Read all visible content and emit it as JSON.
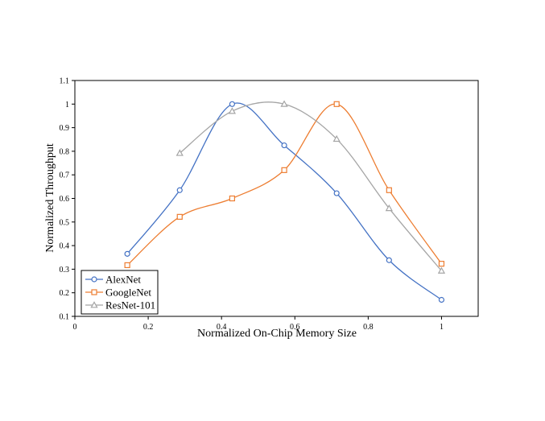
{
  "chart_data": {
    "type": "line",
    "title": "",
    "xlabel": "Normalized On-Chip Memory Size",
    "ylabel": "Normalized Throughput",
    "xlim": [
      0,
      1.1
    ],
    "ylim": [
      0.1,
      1.1
    ],
    "xticks": [
      0,
      0.2,
      0.4,
      0.6,
      0.8,
      1
    ],
    "xtick_labels": [
      "0",
      "0.2",
      "0.4",
      "0.6",
      "0.8",
      "1"
    ],
    "yticks": [
      0.1,
      0.2,
      0.3,
      0.4,
      0.5,
      0.6,
      0.7,
      0.8,
      0.9,
      1,
      1.1
    ],
    "ytick_labels": [
      "0.1",
      "0.2",
      "0.3",
      "0.4",
      "0.5",
      "0.6",
      "0.7",
      "0.8",
      "0.9",
      "1",
      "1.1"
    ],
    "grid": false,
    "legend_position": "bottom-left",
    "smooth": true,
    "series": [
      {
        "name": "AlexNet",
        "color": "#4472C4",
        "marker": "circle",
        "x": [
          0.143,
          0.286,
          0.429,
          0.571,
          0.714,
          0.857,
          1.0
        ],
        "y": [
          0.365,
          0.635,
          1.0,
          0.825,
          0.622,
          0.338,
          0.17
        ]
      },
      {
        "name": "GoogleNet",
        "color": "#ED7D31",
        "marker": "square",
        "x": [
          0.143,
          0.286,
          0.429,
          0.571,
          0.714,
          0.857,
          1.0
        ],
        "y": [
          0.317,
          0.522,
          0.6,
          0.72,
          1.0,
          0.635,
          0.323
        ]
      },
      {
        "name": "ResNet-101",
        "color": "#A5A5A5",
        "marker": "triangle",
        "x": [
          0.286,
          0.429,
          0.571,
          0.714,
          0.857,
          1.0
        ],
        "y": [
          0.792,
          0.97,
          1.0,
          0.852,
          0.558,
          0.293
        ]
      }
    ]
  }
}
